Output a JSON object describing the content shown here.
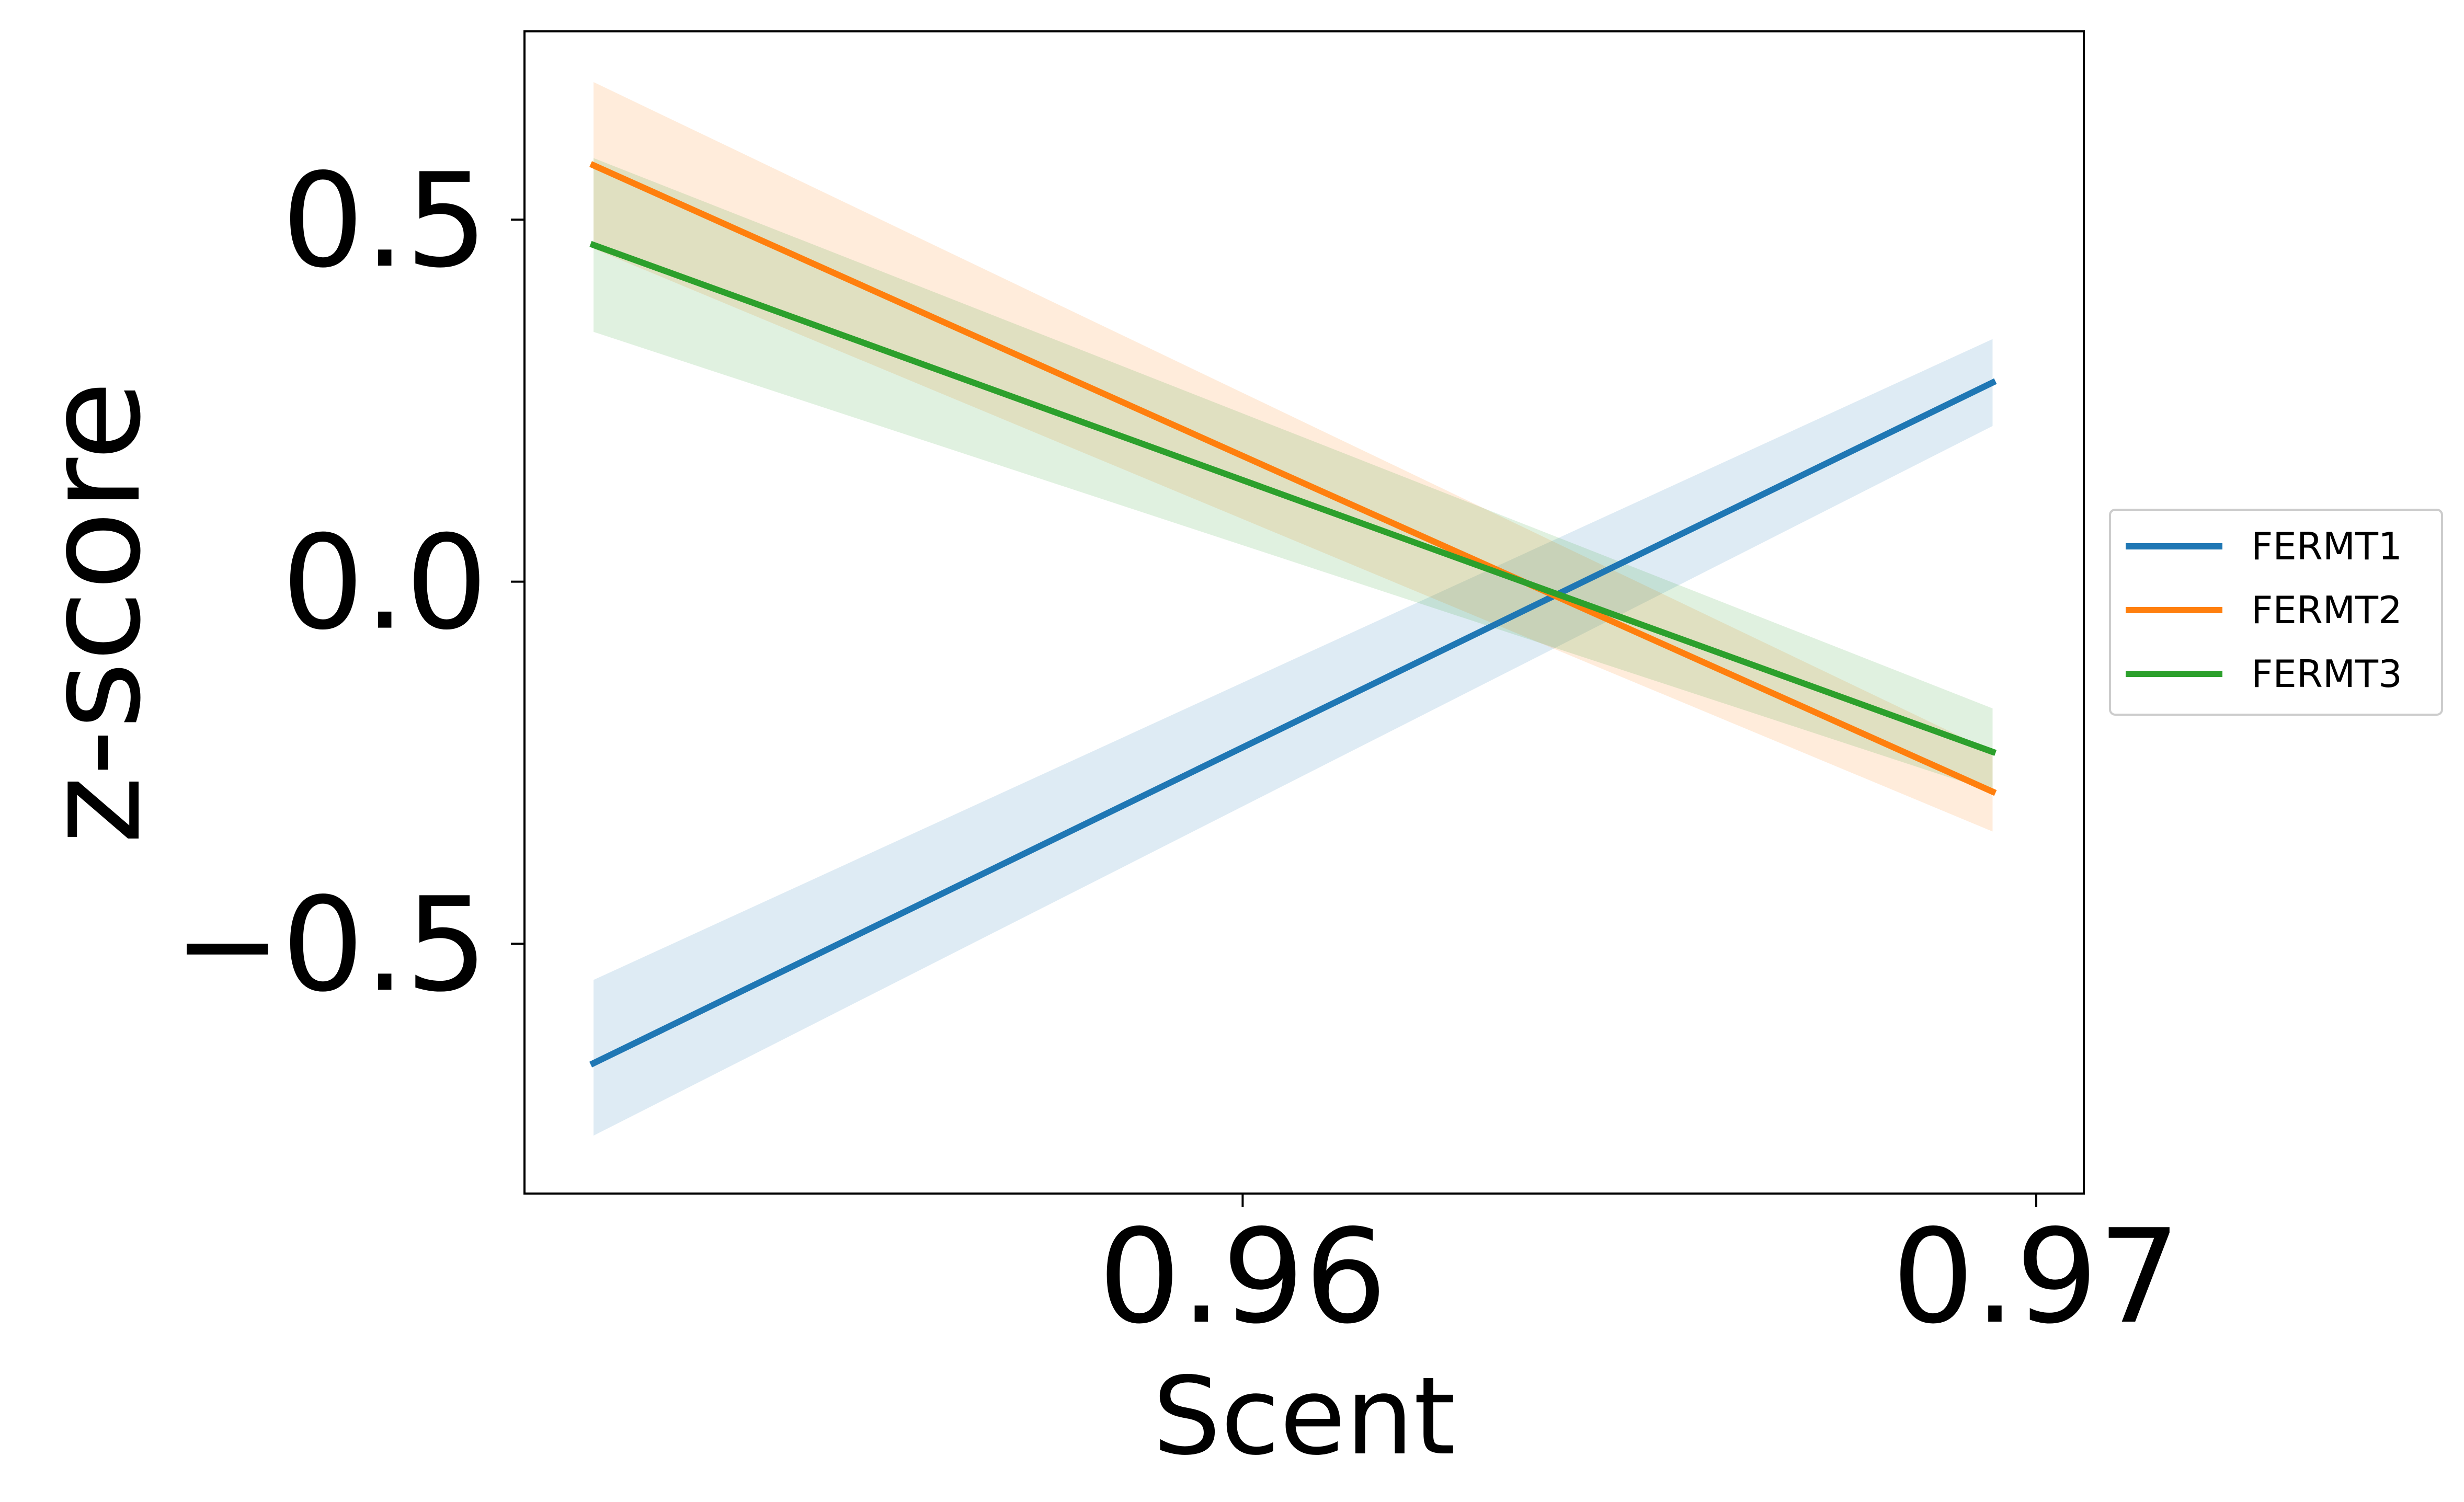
{
  "chart_data": {
    "type": "line",
    "xlabel": "Scent",
    "ylabel": "z-score",
    "xlim": [
      0.95095,
      0.9706
    ],
    "ylim": [
      -0.845,
      0.76
    ],
    "xticks": [
      {
        "value": 0.96,
        "label": "0.96"
      },
      {
        "value": 0.97,
        "label": "0.97"
      }
    ],
    "yticks": [
      {
        "value": 0.5,
        "label": "0.5"
      },
      {
        "value": 0.0,
        "label": "0.0"
      },
      {
        "value": -0.5,
        "label": "−0.5"
      }
    ],
    "grid": false,
    "legend_position": "outside-right",
    "series": [
      {
        "name": "FERMT1",
        "color": "#1f77b4",
        "x": [
          0.95182,
          0.96945
        ],
        "y": [
          -0.665,
          0.275
        ],
        "band_lower": [
          -0.765,
          0.215
        ],
        "band_upper": [
          -0.55,
          0.335
        ]
      },
      {
        "name": "FERMT2",
        "color": "#ff7f0e",
        "x": [
          0.95182,
          0.96945
        ],
        "y": [
          0.575,
          -0.29
        ],
        "band_lower": [
          0.46,
          -0.345
        ],
        "band_upper": [
          0.69,
          -0.235
        ]
      },
      {
        "name": "FERMT3",
        "color": "#2ca02c",
        "x": [
          0.95182,
          0.96945
        ],
        "y": [
          0.465,
          -0.235
        ],
        "band_lower": [
          0.345,
          -0.29
        ],
        "band_upper": [
          0.585,
          -0.175
        ]
      }
    ]
  }
}
